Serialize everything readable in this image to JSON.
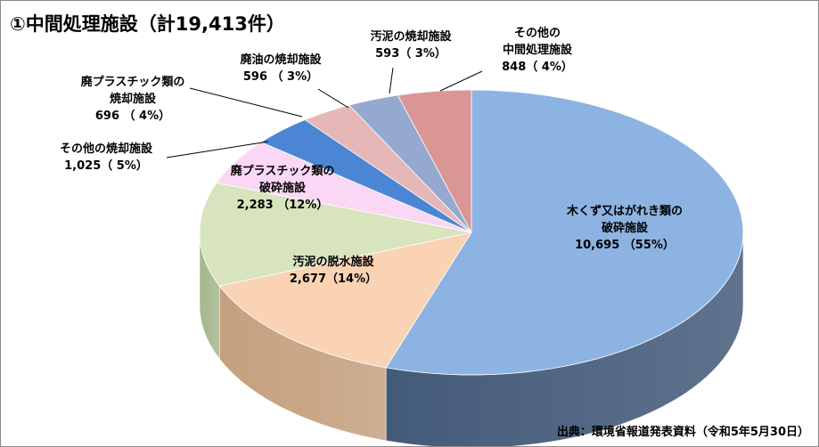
{
  "title": "①中間処理施設（計19,413件）",
  "source": "出典：環境省報道発表資料（令和5年5月30日）",
  "chart_data": {
    "type": "pie",
    "style": "3d",
    "total": 19413,
    "slices": [
      {
        "name": "木くず又はがれき類の破砕施設",
        "label_lines": [
          "木くず又はがれき類の",
          "破砕施設"
        ],
        "value_text": "10,695 （55%）",
        "value": 10695,
        "percent": 55,
        "color": "#8db3e2",
        "side": "#435a79"
      },
      {
        "name": "汚泥の脱水施設",
        "label_lines": [
          "汚泥の脱水施設"
        ],
        "value_text": "2,677（14%）",
        "value": 2677,
        "percent": 14,
        "color": "#fad3b4",
        "side": "#c4a07e"
      },
      {
        "name": "廃プラスチック類の破砕施設",
        "label_lines": [
          "廃プラスチック類の",
          "破砕施設"
        ],
        "value_text": "2,283 （12%）",
        "value": 2283,
        "percent": 12,
        "color": "#d7e4bd",
        "side": "#a5b78c"
      },
      {
        "name": "その他の焼却施設",
        "label_lines": [
          "その他の焼却施設"
        ],
        "value_text": "1,025（ 5%）",
        "value": 1025,
        "percent": 5,
        "color": "#fad7f4",
        "side": "#c9a2c2"
      },
      {
        "name": "廃プラスチック類の焼却施設",
        "label_lines": [
          "廃プラスチック類の",
          "焼却施設"
        ],
        "value_text": "696 （ 4%）",
        "value": 696,
        "percent": 4,
        "color": "#4a86d4",
        "side": "#2a5796"
      },
      {
        "name": "廃油の焼却施設",
        "label_lines": [
          "廃油の焼却施設"
        ],
        "value_text": "596 （ 3%）",
        "value": 596,
        "percent": 3,
        "color": "#e6b7b7",
        "side": "#b78d8d"
      },
      {
        "name": "汚泥の焼却施設",
        "label_lines": [
          "汚泥の焼却施設"
        ],
        "value_text": "593（ 3%）",
        "value": 593,
        "percent": 3,
        "color": "#95a9d0",
        "side": "#6579a0"
      },
      {
        "name": "その他の中間処理施設",
        "label_lines": [
          "その他の",
          "中間処理施設"
        ],
        "value_text": "848（ 4%）",
        "value": 848,
        "percent": 4,
        "color": "#d99695",
        "side": "#a86a69"
      }
    ]
  }
}
